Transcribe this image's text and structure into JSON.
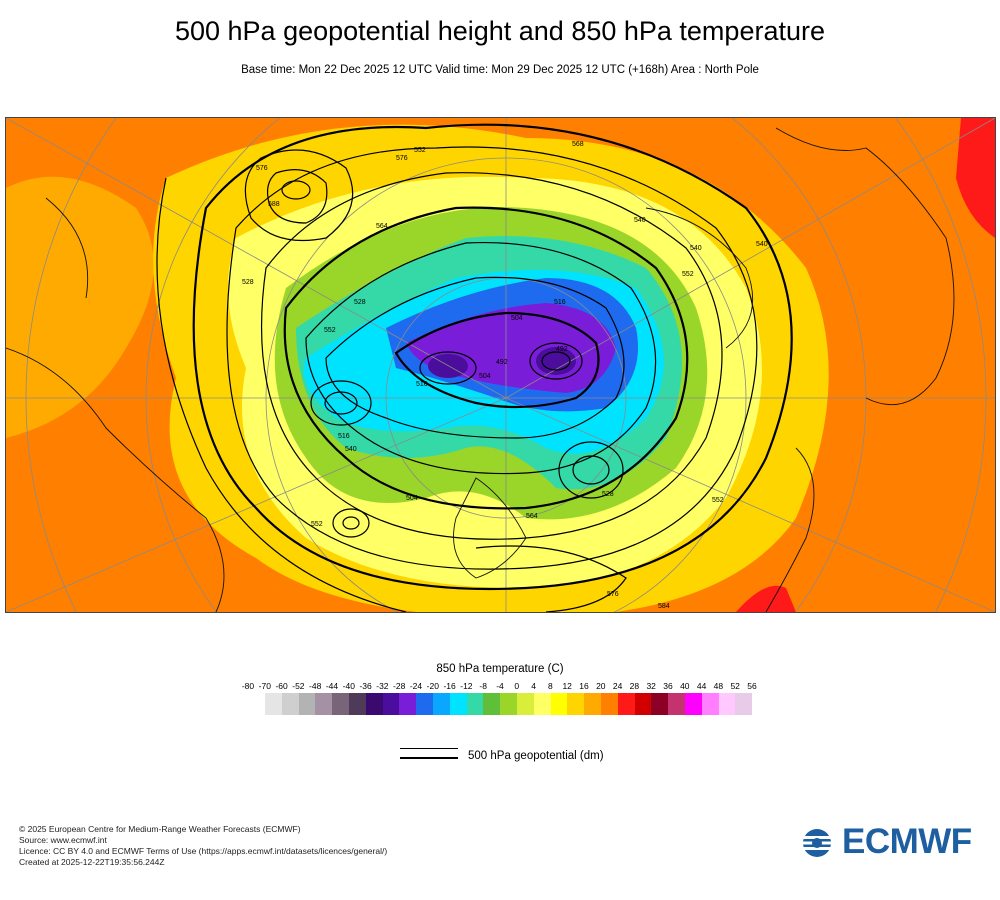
{
  "title": "500 hPa geopotential height and 850 hPa temperature",
  "subtitle": "Base time: Mon 22 Dec 2025 12 UTC Valid time: Mon 29 Dec 2025 12 UTC (+168h) Area : North Pole",
  "colorbar": {
    "title": "850 hPa temperature (C)",
    "labels": [
      "-80",
      "-70",
      "-60",
      "-52",
      "-48",
      "-44",
      "-40",
      "-36",
      "-32",
      "-28",
      "-24",
      "-20",
      "-16",
      "-12",
      "-8",
      "-4",
      "0",
      "4",
      "8",
      "12",
      "16",
      "20",
      "24",
      "28",
      "32",
      "36",
      "40",
      "44",
      "48",
      "52",
      "56"
    ],
    "colors": [
      "#e5e5e5",
      "#cfcfcf",
      "#b3b3b3",
      "#a591a5",
      "#7a6478",
      "#4f3a5a",
      "#3b0a6e",
      "#4a0d9c",
      "#7a1dd9",
      "#1f6bf0",
      "#0aa7ff",
      "#00e3ff",
      "#35d9a8",
      "#5fbf3a",
      "#9ad52a",
      "#d9ee3a",
      "#ffff66",
      "#ffff00",
      "#ffd500",
      "#ffaa00",
      "#ff7f00",
      "#ff1a1a",
      "#d10000",
      "#8c0026",
      "#c5336e",
      "#ff00ff",
      "#ff7fff",
      "#ffc8ff",
      "#e8cbe8"
    ]
  },
  "legend": {
    "label": "500 hPa geopotential (dm)"
  },
  "contour_labels": [
    "576",
    "588",
    "564",
    "576",
    "552",
    "528",
    "516",
    "504",
    "492",
    "492",
    "504",
    "516",
    "540",
    "552",
    "568",
    "552",
    "540",
    "528",
    "540",
    "552",
    "564",
    "576",
    "584",
    "552",
    "540",
    "528",
    "516",
    "504"
  ],
  "footer": {
    "line1": "© 2025 European Centre for Medium-Range Weather Forecasts (ECMWF)",
    "line2": "Source: www.ecmwf.int",
    "line3": "Licence: CC BY 4.0 and ECMWF Terms of Use (https://apps.ecmwf.int/datasets/licences/general/)",
    "line4": "Created at 2025-12-22T19:35:56.244Z"
  },
  "logo": {
    "text": "ECMWF",
    "color": "#1d5fa0"
  }
}
